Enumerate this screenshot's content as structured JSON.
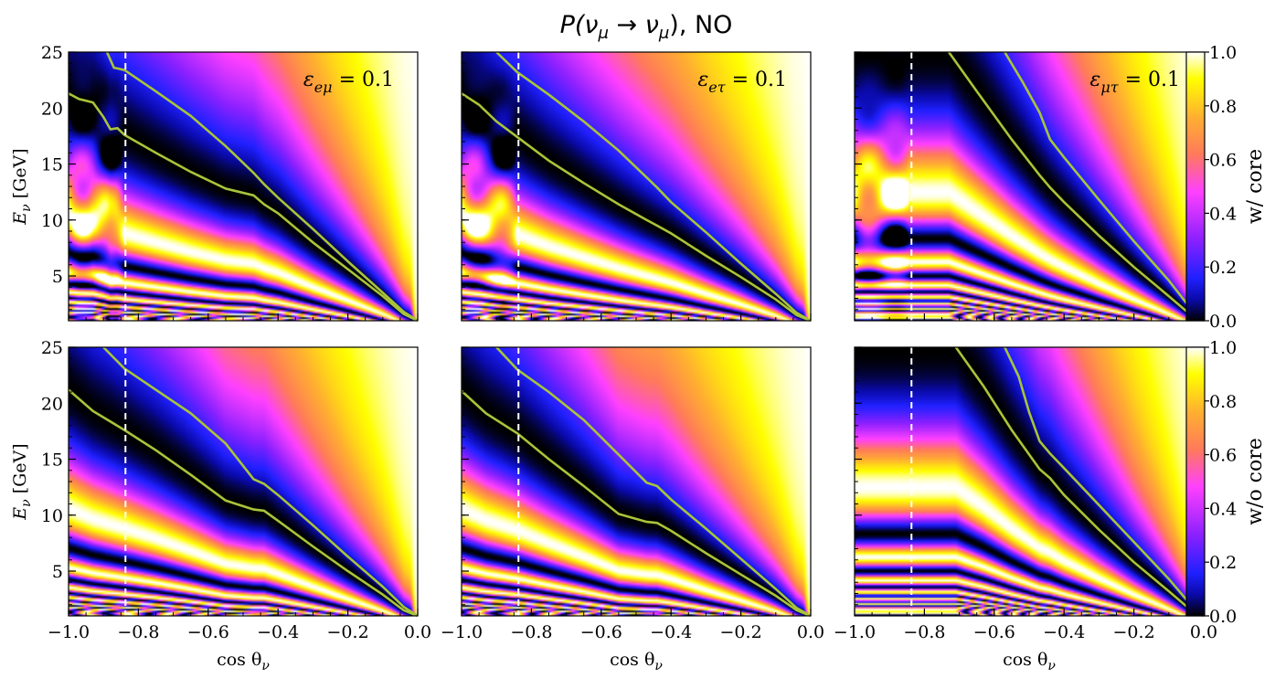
{
  "figure": {
    "title": "P(ν_μ → ν_μ), NO",
    "title_parts": {
      "p": "P(",
      "nu1": "ν",
      "mu1": "μ",
      "arrow": " → ",
      "nu2": "ν",
      "mu2": "μ",
      "close": "), NO"
    }
  },
  "colors": {
    "contour": "#a8c43a",
    "cutline": "#ffffff",
    "colormap": [
      "#000000",
      "#0a0aaa",
      "#2020ff",
      "#8a20ff",
      "#ff40ff",
      "#ff7a5a",
      "#ffb030",
      "#ffff00",
      "#ffffff"
    ]
  },
  "chart_data": [
    {
      "id": "tl",
      "type": "heatmap",
      "annotation": "ε_eμ = 0.1",
      "ann_sym": "ε",
      "ann_sub": "eμ",
      "ann_val": " = 0.1",
      "row": "w/ core",
      "xlabel": "",
      "ylabel": "E_ν [GeV]",
      "xlim": [
        -1.0,
        0.0
      ],
      "ylim": [
        1,
        25
      ],
      "cut_x": -0.837,
      "value_range": [
        0,
        1
      ],
      "contours": [
        [
          [
            -0.89,
            25
          ],
          [
            -0.87,
            23.6
          ],
          [
            -0.84,
            23.4
          ],
          [
            -0.75,
            21.5
          ],
          [
            -0.65,
            19.3
          ],
          [
            -0.55,
            16.6
          ],
          [
            -0.47,
            14.2
          ],
          [
            -0.44,
            13.2
          ],
          [
            -0.4,
            12.0
          ],
          [
            -0.3,
            9.2
          ],
          [
            -0.2,
            6.3
          ],
          [
            -0.1,
            3.5
          ],
          [
            -0.04,
            1.8
          ],
          [
            0.0,
            1
          ]
        ],
        [
          [
            -1.0,
            21.3
          ],
          [
            -0.97,
            20.8
          ],
          [
            -0.93,
            20.5
          ],
          [
            -0.9,
            19.2
          ],
          [
            -0.88,
            18.1
          ],
          [
            -0.86,
            18.2
          ],
          [
            -0.84,
            17.6
          ],
          [
            -0.75,
            16.0
          ],
          [
            -0.65,
            14.3
          ],
          [
            -0.55,
            12.8
          ],
          [
            -0.47,
            12.2
          ],
          [
            -0.44,
            11.4
          ],
          [
            -0.4,
            10.6
          ],
          [
            -0.3,
            8.0
          ],
          [
            -0.2,
            5.6
          ],
          [
            -0.1,
            3.2
          ],
          [
            -0.04,
            1.6
          ],
          [
            0.0,
            1
          ]
        ]
      ]
    },
    {
      "id": "tm",
      "type": "heatmap",
      "annotation": "ε_eτ = 0.1",
      "ann_sym": "ε",
      "ann_sub": "eτ",
      "ann_val": " = 0.1",
      "row": "w/ core",
      "xlabel": "",
      "ylabel": "",
      "xlim": [
        -1.0,
        0.0
      ],
      "ylim": [
        1,
        25
      ],
      "cut_x": -0.837,
      "value_range": [
        0,
        1
      ],
      "contours": [
        [
          [
            -0.9,
            25
          ],
          [
            -0.84,
            23.2
          ],
          [
            -0.75,
            21.2
          ],
          [
            -0.65,
            18.8
          ],
          [
            -0.55,
            16.2
          ],
          [
            -0.47,
            13.8
          ],
          [
            -0.44,
            12.9
          ],
          [
            -0.4,
            11.6
          ],
          [
            -0.3,
            8.9
          ],
          [
            -0.2,
            6.1
          ],
          [
            -0.1,
            3.4
          ],
          [
            -0.04,
            1.7
          ],
          [
            0.0,
            1
          ]
        ],
        [
          [
            -1.0,
            21.3
          ],
          [
            -0.95,
            20.3
          ],
          [
            -0.9,
            18.8
          ],
          [
            -0.84,
            17.4
          ],
          [
            -0.75,
            15.3
          ],
          [
            -0.65,
            13.3
          ],
          [
            -0.55,
            11.4
          ],
          [
            -0.47,
            10.0
          ],
          [
            -0.44,
            9.5
          ],
          [
            -0.4,
            8.8
          ],
          [
            -0.3,
            6.8
          ],
          [
            -0.2,
            4.9
          ],
          [
            -0.1,
            2.9
          ],
          [
            -0.04,
            1.5
          ],
          [
            0.0,
            1
          ]
        ]
      ]
    },
    {
      "id": "tr",
      "type": "heatmap",
      "annotation": "ε_μτ = 0.1",
      "ann_sym": "ε",
      "ann_sub": "μτ",
      "ann_val": " = 0.1",
      "row": "w/ core",
      "xlabel": "",
      "ylabel": "",
      "xlim": [
        -1.0,
        0.0
      ],
      "ylim": [
        1,
        25
      ],
      "cut_x": -0.837,
      "value_range": [
        0,
        1
      ],
      "contours": [
        [
          [
            -0.57,
            25
          ],
          [
            -0.52,
            22.4
          ],
          [
            -0.47,
            19.6
          ],
          [
            -0.44,
            17.2
          ],
          [
            -0.4,
            15.6
          ],
          [
            -0.3,
            11.8
          ],
          [
            -0.2,
            8.1
          ],
          [
            -0.1,
            4.6
          ],
          [
            -0.04,
            2.2
          ],
          [
            0.0,
            1
          ]
        ],
        [
          [
            -0.73,
            25
          ],
          [
            -0.65,
            21.5
          ],
          [
            -0.55,
            17.2
          ],
          [
            -0.47,
            14.0
          ],
          [
            -0.44,
            12.9
          ],
          [
            -0.4,
            11.6
          ],
          [
            -0.3,
            8.6
          ],
          [
            -0.2,
            5.8
          ],
          [
            -0.1,
            3.2
          ],
          [
            -0.04,
            1.6
          ],
          [
            0.0,
            1
          ]
        ]
      ]
    },
    {
      "id": "bl",
      "type": "heatmap",
      "annotation": "",
      "row": "w/o core",
      "xlabel": "cos θ_ν",
      "ylabel": "E_ν [GeV]",
      "xlim": [
        -1.0,
        0.0
      ],
      "ylim": [
        1,
        25
      ],
      "cut_x": -0.837,
      "value_range": [
        0,
        1
      ],
      "contours": [
        [
          [
            -0.9,
            25
          ],
          [
            -0.84,
            23.1
          ],
          [
            -0.75,
            21.2
          ],
          [
            -0.65,
            19.1
          ],
          [
            -0.55,
            16.4
          ],
          [
            -0.47,
            13.2
          ],
          [
            -0.44,
            12.8
          ],
          [
            -0.4,
            11.8
          ],
          [
            -0.3,
            9.1
          ],
          [
            -0.2,
            6.3
          ],
          [
            -0.1,
            3.6
          ],
          [
            -0.04,
            1.8
          ],
          [
            0.0,
            1
          ]
        ],
        [
          [
            -1.0,
            21.2
          ],
          [
            -0.93,
            19.3
          ],
          [
            -0.84,
            17.6
          ],
          [
            -0.75,
            15.8
          ],
          [
            -0.65,
            13.6
          ],
          [
            -0.55,
            11.3
          ],
          [
            -0.47,
            10.5
          ],
          [
            -0.44,
            10.4
          ],
          [
            -0.4,
            9.5
          ],
          [
            -0.3,
            7.2
          ],
          [
            -0.2,
            5.0
          ],
          [
            -0.1,
            2.9
          ],
          [
            -0.04,
            1.5
          ],
          [
            0.0,
            1
          ]
        ]
      ]
    },
    {
      "id": "bm",
      "type": "heatmap",
      "annotation": "",
      "row": "w/o core",
      "xlabel": "cos θ_ν",
      "ylabel": "",
      "xlim": [
        -1.0,
        0.0
      ],
      "ylim": [
        1,
        25
      ],
      "cut_x": -0.837,
      "value_range": [
        0,
        1
      ],
      "contours": [
        [
          [
            -0.9,
            25
          ],
          [
            -0.84,
            23.0
          ],
          [
            -0.75,
            21.0
          ],
          [
            -0.65,
            18.5
          ],
          [
            -0.55,
            15.4
          ],
          [
            -0.47,
            12.9
          ],
          [
            -0.44,
            12.6
          ],
          [
            -0.4,
            11.4
          ],
          [
            -0.3,
            8.8
          ],
          [
            -0.2,
            6.1
          ],
          [
            -0.1,
            3.4
          ],
          [
            -0.04,
            1.7
          ],
          [
            0.0,
            1
          ]
        ],
        [
          [
            -1.0,
            21.1
          ],
          [
            -0.93,
            19.1
          ],
          [
            -0.84,
            17.3
          ],
          [
            -0.75,
            15.0
          ],
          [
            -0.65,
            12.6
          ],
          [
            -0.55,
            10.1
          ],
          [
            -0.47,
            9.4
          ],
          [
            -0.44,
            9.3
          ],
          [
            -0.4,
            8.6
          ],
          [
            -0.3,
            6.6
          ],
          [
            -0.2,
            4.7
          ],
          [
            -0.1,
            2.8
          ],
          [
            -0.04,
            1.5
          ],
          [
            0.0,
            1
          ]
        ]
      ]
    },
    {
      "id": "br",
      "type": "heatmap",
      "annotation": "",
      "row": "w/o core",
      "xlabel": "cos θ_ν",
      "ylabel": "",
      "xlim": [
        -1.0,
        0.0
      ],
      "ylim": [
        1,
        25
      ],
      "cut_x": -0.837,
      "value_range": [
        0,
        1
      ],
      "contours": [
        [
          [
            -0.57,
            25
          ],
          [
            -0.53,
            22.4
          ],
          [
            -0.5,
            19.2
          ],
          [
            -0.47,
            16.6
          ],
          [
            -0.44,
            15.5
          ],
          [
            -0.4,
            14.2
          ],
          [
            -0.3,
            10.9
          ],
          [
            -0.2,
            7.6
          ],
          [
            -0.1,
            4.3
          ],
          [
            -0.04,
            2.1
          ],
          [
            0.0,
            1
          ]
        ],
        [
          [
            -0.71,
            25
          ],
          [
            -0.63,
            21.5
          ],
          [
            -0.55,
            17.6
          ],
          [
            -0.47,
            14.1
          ],
          [
            -0.44,
            13.3
          ],
          [
            -0.4,
            11.8
          ],
          [
            -0.3,
            8.7
          ],
          [
            -0.2,
            5.8
          ],
          [
            -0.1,
            3.2
          ],
          [
            -0.04,
            1.6
          ],
          [
            0.0,
            1
          ]
        ]
      ]
    }
  ],
  "axes": {
    "x_ticks": [
      -1.0,
      -0.8,
      -0.6,
      -0.4,
      -0.2,
      0.0
    ],
    "x_tick_labels": [
      "−1.0",
      "−0.8",
      "−0.6",
      "−0.4",
      "−0.2",
      "0.0"
    ],
    "y_ticks": [
      5,
      10,
      15,
      20,
      25
    ],
    "y_tick_labels": [
      "5",
      "10",
      "15",
      "20",
      "25"
    ],
    "xlabel_main": "cos θ",
    "xlabel_sub": "ν",
    "ylabel_main": "E",
    "ylabel_sub": "ν",
    "ylabel_unit": " [GeV]"
  },
  "colorbars": [
    {
      "label": "w/ core",
      "ticks": [
        0.0,
        0.2,
        0.4,
        0.6,
        0.8,
        1.0
      ],
      "tick_labels": [
        "0.0",
        "0.2",
        "0.4",
        "0.6",
        "0.8",
        "1.0"
      ]
    },
    {
      "label": "w/o core",
      "ticks": [
        0.0,
        0.2,
        0.4,
        0.6,
        0.8,
        1.0
      ],
      "tick_labels": [
        "0.0",
        "0.2",
        "0.4",
        "0.6",
        "0.8",
        "1.0"
      ]
    }
  ]
}
